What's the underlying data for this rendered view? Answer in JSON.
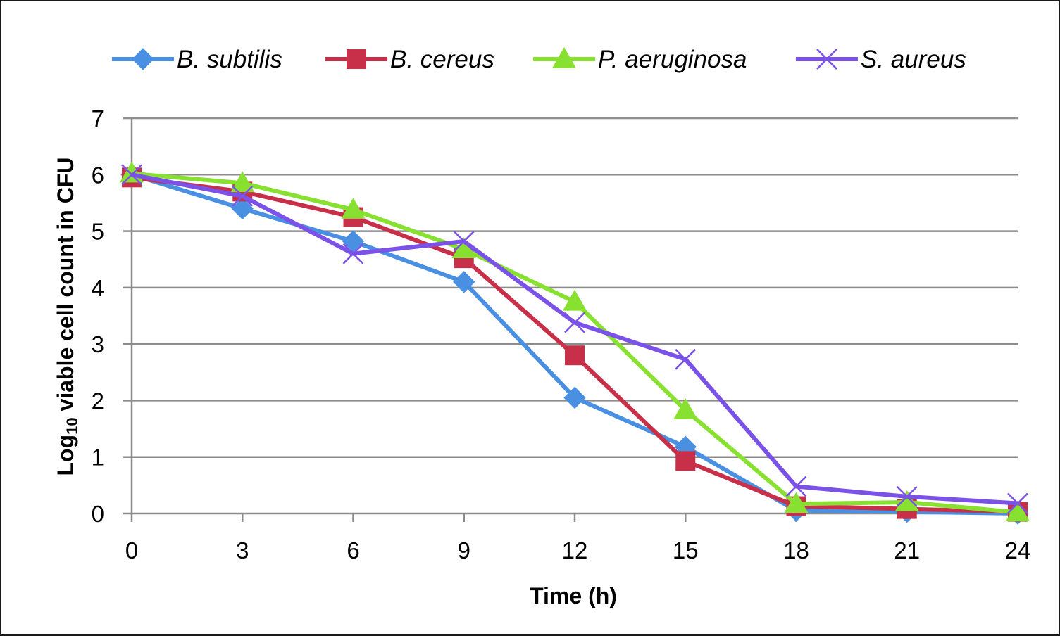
{
  "chart_data": {
    "type": "line",
    "title": "",
    "xlabel": "Time (h)",
    "ylabel_main": "Log",
    "ylabel_sub": "10",
    "ylabel_rest": " viable cell count in CFU",
    "x": [
      0,
      3,
      6,
      9,
      12,
      15,
      18,
      21,
      24
    ],
    "x_tick_labels": [
      "0",
      "3",
      "6",
      "9",
      "12",
      "15",
      "18",
      "21",
      "24"
    ],
    "y_tick_labels": [
      "0",
      "1",
      "2",
      "3",
      "4",
      "5",
      "6",
      "7"
    ],
    "ylim": [
      0,
      7
    ],
    "grid": "horizontal",
    "legend_position": "top",
    "series": [
      {
        "name": "B. subtilis",
        "color": "#4a90e2",
        "marker": "diamond",
        "values": [
          6.0,
          5.4,
          4.82,
          4.1,
          2.05,
          1.18,
          0.05,
          0.03,
          0.0
        ]
      },
      {
        "name": "B. cereus",
        "color": "#c8304a",
        "marker": "square",
        "values": [
          5.95,
          5.7,
          5.25,
          4.52,
          2.8,
          0.93,
          0.13,
          0.08,
          0.03
        ]
      },
      {
        "name": "P. aeruginosa",
        "color": "#88e031",
        "marker": "triangle",
        "values": [
          6.02,
          5.85,
          5.38,
          4.68,
          3.75,
          1.83,
          0.17,
          0.2,
          0.02
        ]
      },
      {
        "name": "S. aureus",
        "color": "#7b52e8",
        "marker": "x",
        "values": [
          6.0,
          5.62,
          4.6,
          4.82,
          3.38,
          2.73,
          0.48,
          0.3,
          0.18
        ]
      }
    ]
  }
}
